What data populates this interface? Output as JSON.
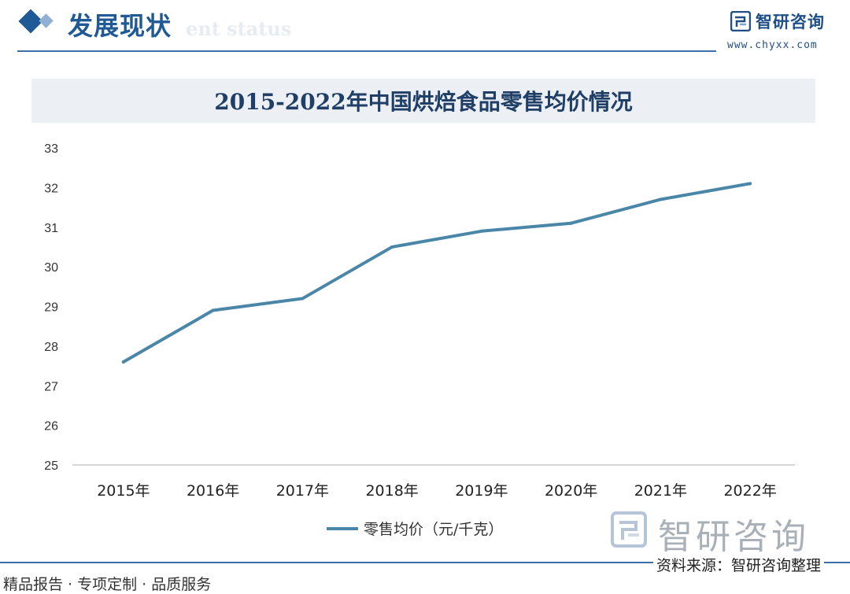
{
  "header": {
    "section_title": "发展现状",
    "section_subtitle": "ent status",
    "brand_name": "智研咨询",
    "brand_url": "www.chyxx.com"
  },
  "footer": {
    "left_text": "精品报告 · 专项定制 · 品质服务",
    "source_text": "资料来源：智研咨询整理"
  },
  "watermark_text": "智研咨询",
  "colors": {
    "brand": "#1f5a96",
    "line": "#4a86a8",
    "title_bar": "#eceff4"
  },
  "chart_data": {
    "type": "line",
    "title": "2015-2022年中国烘焙食品零售均价情况",
    "categories": [
      "2015年",
      "2016年",
      "2017年",
      "2018年",
      "2019年",
      "2020年",
      "2021年",
      "2022年"
    ],
    "series": [
      {
        "name": "零售均价（元/千克）",
        "values": [
          27.6,
          28.9,
          29.2,
          30.5,
          30.9,
          31.1,
          31.7,
          32.1
        ]
      }
    ],
    "ylim": [
      25,
      33
    ],
    "yticks": [
      25,
      26,
      27,
      28,
      29,
      30,
      31,
      32,
      33
    ],
    "grid": false,
    "legend_position": "bottom"
  }
}
